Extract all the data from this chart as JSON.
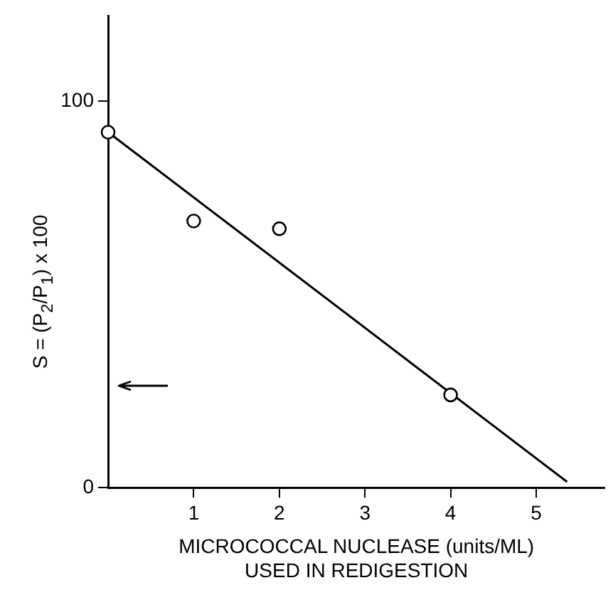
{
  "chart_data": {
    "type": "scatter",
    "xlabel": "MICROCOCCAL NUCLEASE (units/ML)\nUSED IN REDIGESTION",
    "ylabel": "S = (P$_{2}$/P$_{1}$) x 100",
    "xlim": [
      0,
      5.8
    ],
    "xticks": [
      1,
      2,
      3,
      4,
      5
    ],
    "ylim": [
      0,
      122
    ],
    "yticks": [
      0,
      100
    ],
    "grid": false,
    "legend": false,
    "series": [
      {
        "color": "#000000",
        "x": [
          0,
          1,
          2,
          4
        ],
        "values": [
          92,
          69,
          67,
          24
        ],
        "marker": "circle"
      },
      {
        "type": "line",
        "color": "#000000",
        "x": [
          0,
          5.36
        ],
        "values": [
          92,
          1.5
        ],
        "marker": "none",
        "line_style": "solid"
      }
    ]
  }
}
